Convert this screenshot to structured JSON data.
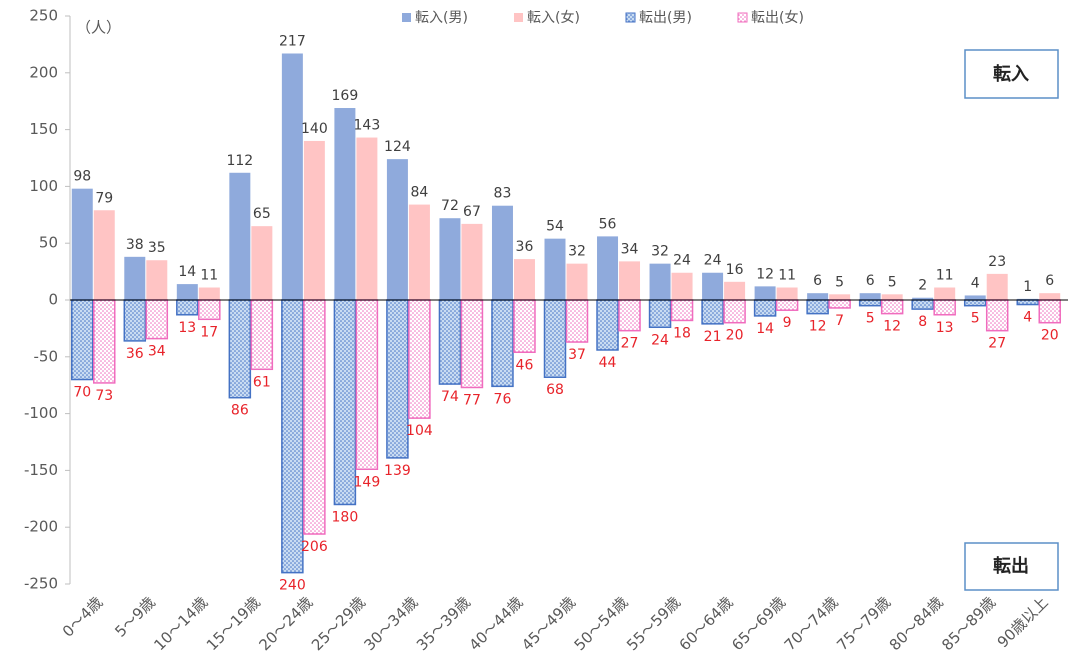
{
  "chart_data": {
    "type": "bar",
    "unit_label": "（人）",
    "categories": [
      "0～4歳",
      "5～9歳",
      "10～14歳",
      "15～19歳",
      "20～24歳",
      "25～29歳",
      "30～34歳",
      "35～39歳",
      "40～44歳",
      "45～49歳",
      "50～54歳",
      "55～59歳",
      "60～64歳",
      "65～69歳",
      "70～74歳",
      "75～79歳",
      "80～84歳",
      "85～89歳",
      "90歳以上"
    ],
    "series": [
      {
        "name": "転入(男)",
        "color": "#8faadc",
        "values": [
          98,
          38,
          14,
          112,
          217,
          169,
          124,
          72,
          83,
          54,
          56,
          32,
          24,
          12,
          6,
          6,
          2,
          4,
          1
        ]
      },
      {
        "name": "転入(女)",
        "color": "#ffc4c4",
        "values": [
          79,
          35,
          11,
          65,
          140,
          143,
          84,
          67,
          36,
          32,
          34,
          24,
          16,
          11,
          5,
          5,
          11,
          23,
          6
        ]
      },
      {
        "name": "転出(男)",
        "color": "#4472c4",
        "background": "#c9dcf2",
        "pattern": "dots",
        "values": [
          -70,
          -36,
          -13,
          -86,
          -240,
          -180,
          -139,
          -74,
          -76,
          -68,
          -44,
          -24,
          -21,
          -14,
          -12,
          -5,
          -8,
          -5,
          -4
        ],
        "value_labels": [
          "70",
          "36",
          "13",
          "86",
          "240",
          "180",
          "139",
          "74",
          "76",
          "68",
          "44",
          "24",
          "21",
          "14",
          "12",
          "5",
          "8",
          "5",
          "4"
        ]
      },
      {
        "name": "転出(女)",
        "color": "#f06cbe",
        "background": "#ffffff",
        "pattern": "dots",
        "values": [
          -73,
          -34,
          -17,
          -61,
          -206,
          -149,
          -104,
          -77,
          -46,
          -37,
          -27,
          -18,
          -20,
          -9,
          -7,
          -12,
          -13,
          -27,
          -20
        ],
        "value_labels": [
          "73",
          "34",
          "17",
          "61",
          "206",
          "149",
          "104",
          "77",
          "46",
          "37",
          "27",
          "18",
          "20",
          "9",
          "7",
          "12",
          "13",
          "27",
          "20"
        ]
      }
    ],
    "ylim": [
      -250,
      250
    ],
    "yticks": [
      -250,
      -200,
      -150,
      -100,
      -50,
      0,
      50,
      100,
      150,
      200,
      250
    ],
    "annotations": [
      "転入",
      "転出"
    ]
  }
}
